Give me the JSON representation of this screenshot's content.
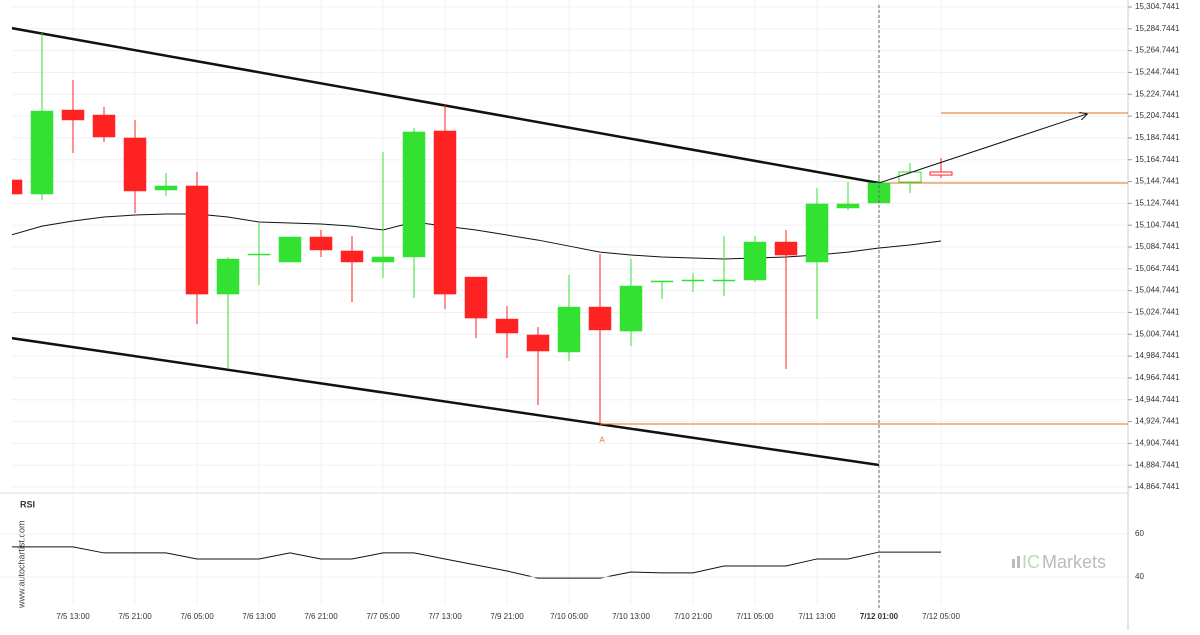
{
  "chart_data": {
    "type": "candlestick",
    "categories": [
      null,
      null,
      "7/5 13:00",
      null,
      "7/5 21:00",
      null,
      "7/6 05:00",
      null,
      "7/6 13:00",
      null,
      "7/6 21:00",
      null,
      "7/7 05:00",
      null,
      "7/7 13:00",
      null,
      "7/9 21:00",
      null,
      "7/10 05:00",
      null,
      "7/10 13:00",
      null,
      "7/10 21:00",
      null,
      "7/11 05:00",
      null,
      "7/11 13:00",
      null,
      "7/12 01:00",
      null,
      "7/12 05:00"
    ],
    "open": [
      15146.2,
      15133.3,
      15210.3,
      15205.7,
      15184.7,
      15137.0,
      15140.7,
      15041.6,
      15077.4,
      15071.0,
      15093.9,
      15081.1,
      15071.0,
      15075.6,
      15191.1,
      15057.2,
      15018.7,
      15004.1,
      14988.5,
      15029.7,
      15007.7,
      15052.7,
      15053.6,
      15054.5,
      15054.5,
      15089.3,
      15071.0,
      15120.5,
      15125.1,
      15144.3,
      15153.5
    ],
    "high": [
      15146.2,
      15280.9,
      15237.8,
      15213.1,
      15201.2,
      15152.6,
      15153.5,
      15075.6,
      15107.7,
      15093.9,
      15100.3,
      15094.8,
      15171.8,
      15193.8,
      15214.9,
      15057.2,
      15030.6,
      15011.4,
      15059.1,
      15078.3,
      15073.7,
      15053.6,
      15060.9,
      15094.8,
      15094.8,
      15100.3,
      15138.8,
      15144.3,
      15148.0,
      15161.7,
      15166.3
    ],
    "low": [
      15133.3,
      15127.8,
      15170.9,
      15181.0,
      15115.9,
      15131.5,
      15014.1,
      14973.8,
      15049.9,
      15071.0,
      15075.6,
      15034.3,
      15056.3,
      15038.0,
      15027.9,
      15001.3,
      14983.0,
      14939.9,
      14980.2,
      14922.5,
      14994.0,
      15037.1,
      15043.5,
      15039.8,
      15052.7,
      14972.9,
      15018.7,
      15118.7,
      15125.1,
      15134.2,
      15148.0
    ],
    "close": [
      15133.3,
      15209.4,
      15201.2,
      15185.6,
      15136.1,
      15140.7,
      15041.6,
      15073.7,
      15078.3,
      15093.9,
      15082.0,
      15071.0,
      15075.6,
      15190.2,
      15041.6,
      15019.6,
      15005.9,
      14989.4,
      15029.7,
      15008.7,
      15049.0,
      15053.6,
      15054.5,
      15054.5,
      15089.3,
      15077.4,
      15124.2,
      15124.2,
      15143.4,
      15153.5,
      15150.7
    ],
    "up_color": "#33e133",
    "down_color": "#ff2222",
    "hollow_from_index": 29,
    "ma": {
      "color": "#111111",
      "values": [
        15095.7,
        15103.9,
        15108.6,
        15112.2,
        15114.1,
        15115.0,
        15115.0,
        15112.2,
        15107.7,
        15106.7,
        15105.8,
        15103.9,
        15100.3,
        15107.7,
        15103.9,
        15100.3,
        15095.7,
        15091.1,
        15085.6,
        15080.1,
        15077.4,
        15075.6,
        15074.7,
        15073.7,
        15074.7,
        15075.6,
        15077.4,
        15080.1,
        15083.8,
        15086.6,
        15090.2
      ]
    },
    "trendlines": [
      {
        "start_index": 0,
        "start_value": 15285.5,
        "end_index": 28,
        "end_value": 15143.4
      },
      {
        "start_index": 0,
        "start_value": 15001.3,
        "end_index": 28,
        "end_value": 14884.9
      }
    ],
    "levels": [
      {
        "value": 15143.4,
        "from_index": 28
      },
      {
        "value": 15207.6,
        "from_index": 30
      },
      {
        "value": 14922.5,
        "from_index": 19
      }
    ],
    "level_color": "#e07020",
    "arrow": {
      "start_index": 28,
      "start_value": 15143.4,
      "end_index": 34.7,
      "end_value": 15206.6
    },
    "annotation": {
      "text": "A",
      "index": 19,
      "value": 14915.0
    },
    "highlight_index": 28,
    "ylim": [
      14862.0,
      15311.16
    ],
    "yticks": [
      {
        "value": 14864.7441,
        "label": "14,864.7441"
      },
      {
        "value": 14884.7441,
        "label": "14,884.7441"
      },
      {
        "value": 14904.7441,
        "label": "14,904.7441"
      },
      {
        "value": 14924.7441,
        "label": "14,924.7441"
      },
      {
        "value": 14944.7441,
        "label": "14,944.7441"
      },
      {
        "value": 14964.7441,
        "label": "14,964.7441"
      },
      {
        "value": 14984.7441,
        "label": "14,984.7441"
      },
      {
        "value": 15004.7441,
        "label": "15,004.7441"
      },
      {
        "value": 15024.7441,
        "label": "15,024.7441"
      },
      {
        "value": 15044.7441,
        "label": "15,044.7441"
      },
      {
        "value": 15064.7441,
        "label": "15,064.7441"
      },
      {
        "value": 15084.7441,
        "label": "15,084.7441"
      },
      {
        "value": 15104.7441,
        "label": "15,104.7441"
      },
      {
        "value": 15124.7441,
        "label": "15,124.7441"
      },
      {
        "value": 15144.7441,
        "label": "15,144.7441"
      },
      {
        "value": 15164.7441,
        "label": "15,164.7441"
      },
      {
        "value": 15184.7441,
        "label": "15,184.7441"
      },
      {
        "value": 15204.7441,
        "label": "15,204.7441"
      },
      {
        "value": 15224.7441,
        "label": "15,224.7441"
      },
      {
        "value": 15244.7441,
        "label": "15,244.7441"
      },
      {
        "value": 15264.7441,
        "label": "15,264.7441"
      },
      {
        "value": 15284.7441,
        "label": "15,284.7441"
      },
      {
        "value": 15304.7441,
        "label": "15,304.7441"
      }
    ],
    "grid": true,
    "rsi": {
      "title": "RSI",
      "color": "#111111",
      "values": [
        54.0,
        54.0,
        54.0,
        51.2,
        51.2,
        51.2,
        48.4,
        48.4,
        48.4,
        51.2,
        48.4,
        48.4,
        51.2,
        51.2,
        48.4,
        45.6,
        42.8,
        39.5,
        39.5,
        39.5,
        42.3,
        41.9,
        41.9,
        45.1,
        45.1,
        45.1,
        48.4,
        48.4,
        51.6,
        51.6,
        51.6
      ],
      "ylim": [
        29.3,
        73.5
      ],
      "yticks": [
        40,
        60
      ]
    },
    "watermark": "www.autochartist.com",
    "brand": {
      "prefix": "IC",
      "name": "Markets"
    }
  }
}
